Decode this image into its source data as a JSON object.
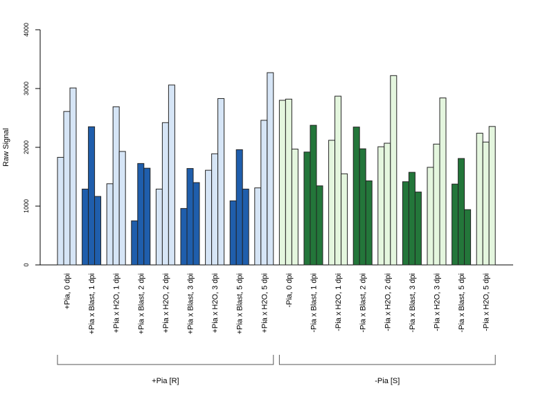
{
  "chart_data": {
    "type": "bar",
    "title": "",
    "xlabel": "",
    "ylabel": "Raw Signal",
    "ylim": [
      0,
      4000
    ],
    "yticks": [
      0,
      1000,
      2000,
      3000,
      4000
    ],
    "grid": false,
    "legend": "none",
    "categories": [
      "+Pia, 0 dpi",
      "+Pia x Blast, 1 dpi",
      "+Pia x H2O, 1 dpi",
      "+Pia x Blast, 2 dpi",
      "+Pia x H2O, 2 dpi",
      "+Pia x Blast, 3 dpi",
      "+Pia x H2O, 3 dpi",
      "+Pia x Blast, 5 dpi",
      "+Pia x H2O, 5 dpi",
      "-Pia, 0 dpi",
      "-Pia x Blast, 1 dpi",
      "-Pia x H2O, 1 dpi",
      "-Pia x Blast, 2 dpi",
      "-Pia x H2O, 2 dpi",
      "-Pia x Blast, 3 dpi",
      "-Pia x H2O, 3 dpi",
      "-Pia x Blast, 5 dpi",
      "-Pia x H2O, 5 dpi"
    ],
    "replicate_values": [
      [
        1830,
        2610,
        3010
      ],
      [
        1290,
        2350,
        1165
      ],
      [
        1380,
        2690,
        1930
      ],
      [
        750,
        1725,
        1645
      ],
      [
        1290,
        2420,
        3060
      ],
      [
        960,
        1640,
        1400
      ],
      [
        1610,
        1890,
        2830
      ],
      [
        1090,
        1960,
        1290
      ],
      [
        1310,
        2460,
        3270
      ],
      [
        2800,
        2820,
        1970
      ],
      [
        1920,
        2375,
        1345
      ],
      [
        2120,
        2870,
        1550
      ],
      [
        2345,
        1975,
        1430
      ],
      [
        2010,
        2070,
        3220
      ],
      [
        1415,
        1575,
        1240
      ],
      [
        1660,
        2055,
        2840
      ],
      [
        1375,
        1810,
        940
      ],
      [
        2240,
        2090,
        2355
      ]
    ],
    "bar_colors": [
      "#d6e5f6",
      "#1f5eac",
      "#d6e5f6",
      "#1f5eac",
      "#d6e5f6",
      "#1f5eac",
      "#d6e5f6",
      "#1f5eac",
      "#d6e5f6",
      "#e4f6de",
      "#23763a",
      "#e4f6de",
      "#23763a",
      "#e4f6de",
      "#23763a",
      "#e4f6de",
      "#23763a",
      "#e4f6de"
    ],
    "groups": [
      {
        "label": "+Pia [R]",
        "first": 0,
        "last": 8
      },
      {
        "label": "-Pia [S]",
        "first": 9,
        "last": 17
      }
    ]
  }
}
